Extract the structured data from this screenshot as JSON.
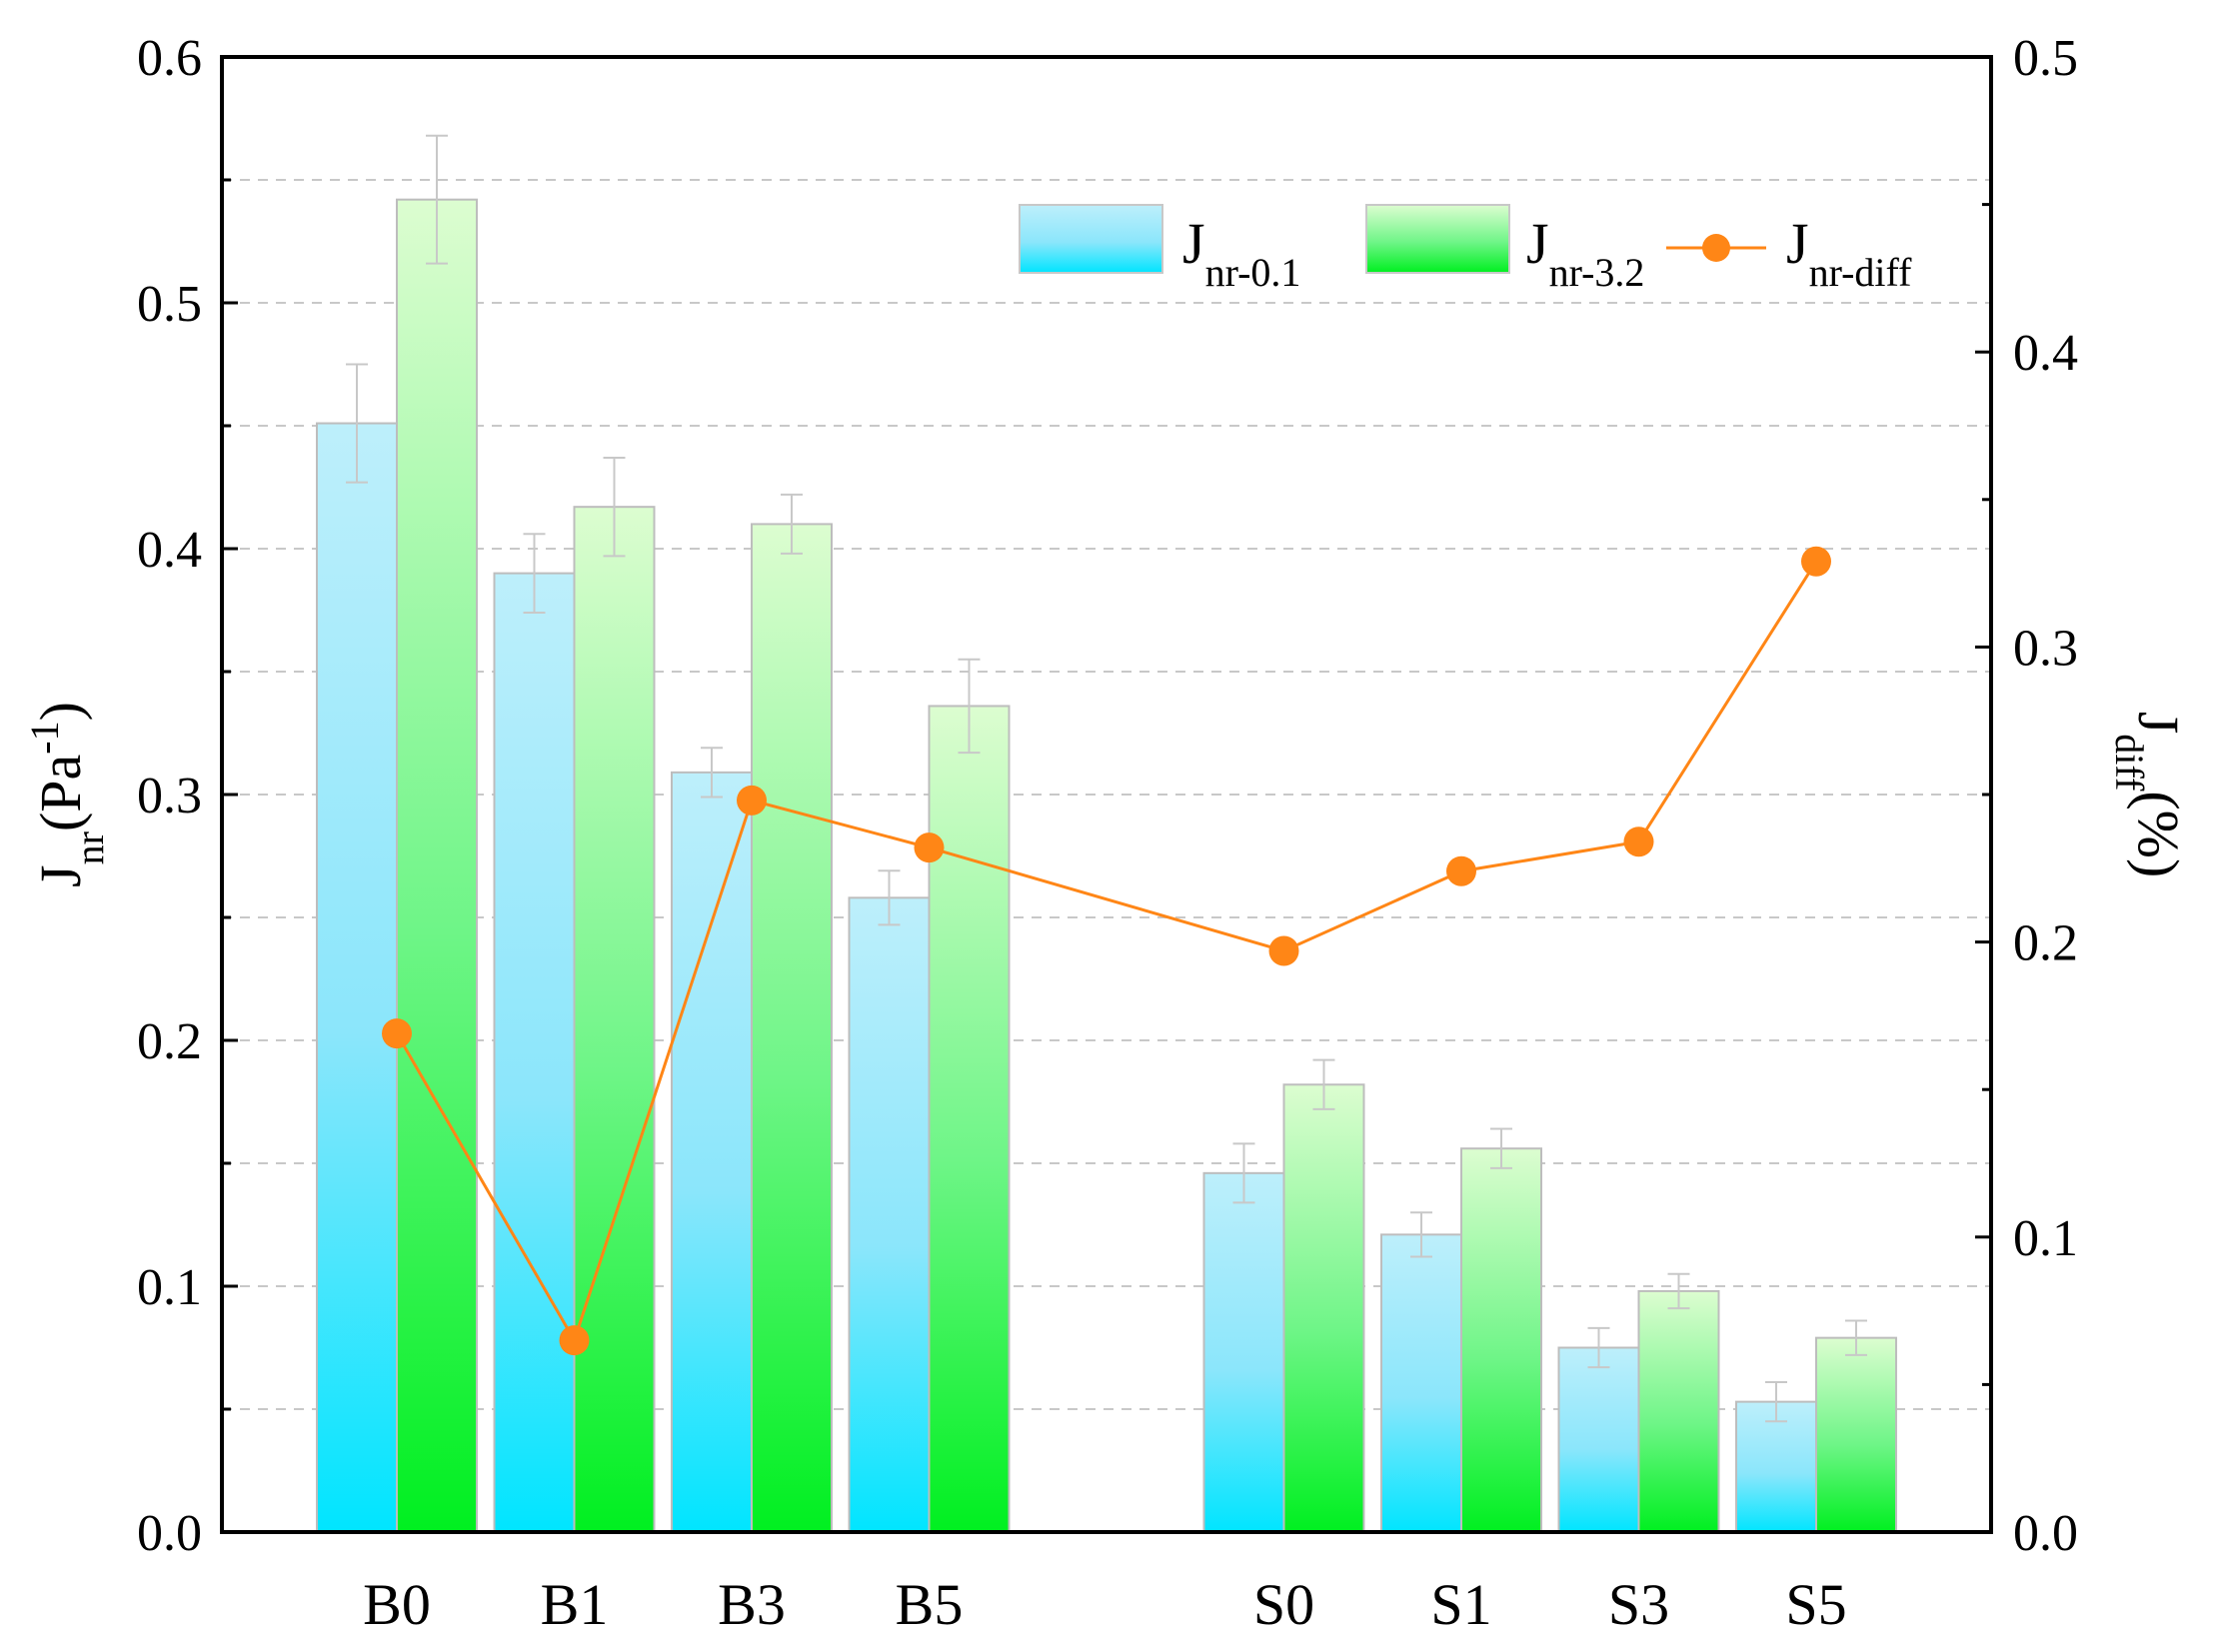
{
  "chart_data": {
    "type": "bar",
    "categories": [
      "B0",
      "B1",
      "B3",
      "B5",
      "",
      "S0",
      "S1",
      "S3",
      "S5"
    ],
    "left_axis": {
      "title_main": "J",
      "title_sub": "nr",
      "title_unit_open": "(Pa",
      "title_unit_sup": "-1",
      "title_unit_close": ")",
      "ylim": [
        0,
        0.6
      ],
      "ticks": [
        "0.0",
        "0.1",
        "0.2",
        "0.3",
        "0.4",
        "0.5",
        "0.6"
      ]
    },
    "right_axis": {
      "title_main": "J",
      "title_sub": "diff",
      "title_unit": "(%)",
      "ylim": [
        0,
        0.5
      ],
      "ticks": [
        "0.0",
        "0.1",
        "0.2",
        "0.3",
        "0.4",
        "0.5"
      ]
    },
    "series": [
      {
        "name_main": "J",
        "name_sub": "nr-0.1",
        "kind": "bar",
        "axis": "left",
        "values": [
          0.451,
          0.39,
          0.309,
          0.258,
          null,
          0.146,
          0.121,
          0.075,
          0.053
        ],
        "errors": [
          0.024,
          0.016,
          0.01,
          0.011,
          null,
          0.012,
          0.009,
          0.008,
          0.008
        ],
        "color_top": "#bdeffb",
        "color_bottom": "#00e5ff"
      },
      {
        "name_main": "J",
        "name_sub": "nr-3.2",
        "kind": "bar",
        "axis": "left",
        "values": [
          0.542,
          0.417,
          0.41,
          0.336,
          null,
          0.182,
          0.156,
          0.098,
          0.079
        ],
        "errors": [
          0.026,
          0.02,
          0.012,
          0.019,
          null,
          0.01,
          0.008,
          0.007,
          0.007
        ],
        "color_top": "#dcfdd0",
        "color_bottom": "#00f020"
      },
      {
        "name_main": "J",
        "name_sub": "nr-diff",
        "kind": "line",
        "axis": "right",
        "values": [
          0.169,
          0.065,
          0.248,
          0.232,
          null,
          0.197,
          0.224,
          0.234,
          0.329
        ],
        "color": "#ff8616"
      }
    ],
    "grid": "dashed",
    "legend_position": "top-right"
  }
}
